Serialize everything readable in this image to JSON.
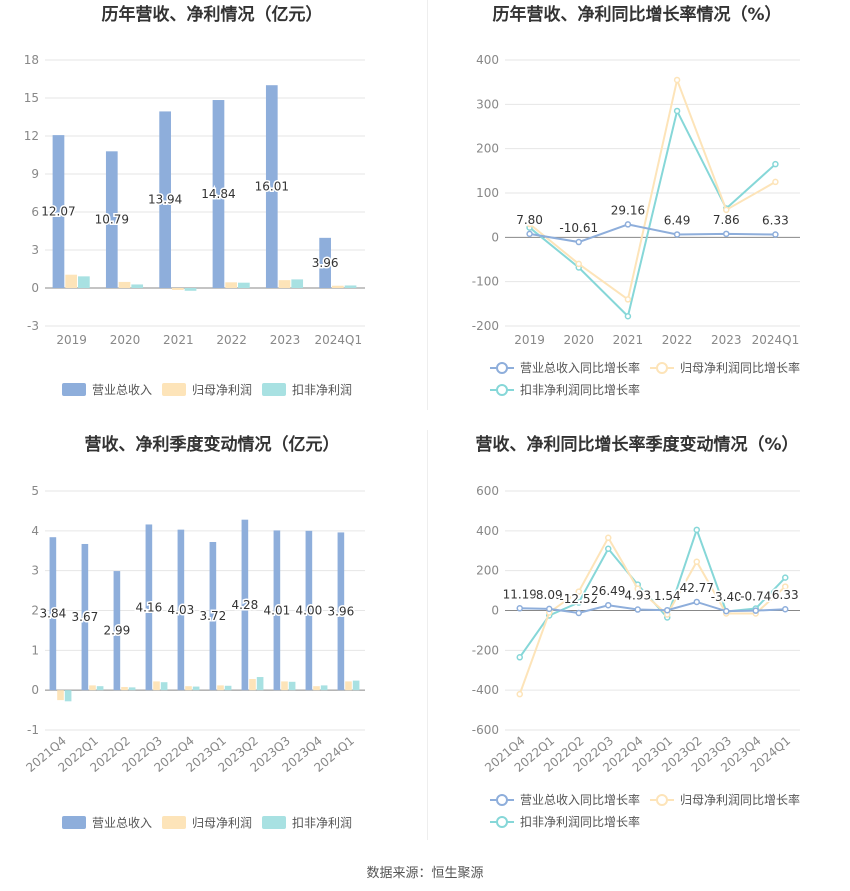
{
  "chart_data": [
    {
      "type": "bar",
      "title": "历年营收、净利情况（亿元）",
      "categories": [
        "2019",
        "2020",
        "2021",
        "2022",
        "2023",
        "2024Q1"
      ],
      "series": [
        {
          "name": "营业总收入",
          "values": [
            12.07,
            10.79,
            13.94,
            14.84,
            16.01,
            3.96
          ]
        },
        {
          "name": "归母净利润",
          "values": [
            1.05,
            0.48,
            -0.15,
            0.45,
            0.62,
            0.18
          ]
        },
        {
          "name": "扣非净利润",
          "values": [
            0.92,
            0.28,
            -0.22,
            0.42,
            0.68,
            0.2
          ]
        }
      ],
      "data_labels": [
        "12.07",
        "10.79",
        "13.94",
        "14.84",
        "16.01",
        "3.96"
      ],
      "yticks": [
        "18",
        "15",
        "12",
        "9",
        "6",
        "3",
        "0",
        "-3"
      ],
      "ylim": [
        -3,
        18
      ],
      "colors": [
        "#8eaedb",
        "#fde4b9",
        "#a8e1e2"
      ],
      "legend_position": "bottom"
    },
    {
      "type": "line",
      "title": "历年营收、净利同比增长率情况（%）",
      "categories": [
        "2019",
        "2020",
        "2021",
        "2022",
        "2023",
        "2024Q1"
      ],
      "series": [
        {
          "name": "营业总收入同比增长率",
          "values": [
            7.8,
            -10.61,
            29.16,
            6.49,
            7.86,
            6.33
          ]
        },
        {
          "name": "归母净利润同比增长率",
          "values": [
            30,
            -60,
            -140,
            355,
            62,
            125
          ]
        },
        {
          "name": "扣非净利润同比增长率",
          "values": [
            22,
            -68,
            -178,
            285,
            65,
            165
          ]
        }
      ],
      "data_labels": [
        "7.80",
        "-10.61",
        "29.16",
        "6.49",
        "7.86",
        "6.33"
      ],
      "yticks": [
        "400",
        "300",
        "200",
        "100",
        "0",
        "-100",
        "-200"
      ],
      "ylim": [
        -200,
        400
      ],
      "colors": [
        "#8eaedb",
        "#fde4b9",
        "#86d7d8"
      ],
      "legend_position": "bottom"
    },
    {
      "type": "bar",
      "title": "营收、净利季度变动情况（亿元）",
      "categories": [
        "2021Q4",
        "2022Q1",
        "2022Q2",
        "2022Q3",
        "2022Q4",
        "2023Q1",
        "2023Q2",
        "2023Q3",
        "2023Q4",
        "2024Q1"
      ],
      "series": [
        {
          "name": "营业总收入",
          "values": [
            3.84,
            3.67,
            2.99,
            4.16,
            4.03,
            3.72,
            4.28,
            4.01,
            4.0,
            3.96
          ]
        },
        {
          "name": "归母净利润",
          "values": [
            -0.25,
            0.12,
            0.08,
            0.22,
            0.1,
            0.12,
            0.28,
            0.22,
            0.1,
            0.22
          ]
        },
        {
          "name": "扣非净利润",
          "values": [
            -0.28,
            0.1,
            0.07,
            0.2,
            0.09,
            0.11,
            0.33,
            0.21,
            0.12,
            0.24
          ]
        }
      ],
      "data_labels": [
        "3.84",
        "3.67",
        "2.99",
        "4.16",
        "4.03",
        "3.72",
        "4.28",
        "4.01",
        "4.00",
        "3.96"
      ],
      "yticks": [
        "5",
        "4",
        "3",
        "2",
        "1",
        "0",
        "-1"
      ],
      "ylim": [
        -1,
        5
      ],
      "colors": [
        "#8eaedb",
        "#fde4b9",
        "#a8e1e2"
      ],
      "legend_position": "bottom"
    },
    {
      "type": "line",
      "title": "营收、净利同比增长率季度变动情况（%）",
      "categories": [
        "2021Q4",
        "2022Q1",
        "2022Q2",
        "2022Q3",
        "2022Q4",
        "2023Q1",
        "2023Q2",
        "2023Q3",
        "2023Q4",
        "2024Q1"
      ],
      "series": [
        {
          "name": "营业总收入同比增长率",
          "values": [
            11.19,
            8.09,
            -12.52,
            26.49,
            4.93,
            1.54,
            42.77,
            -3.4,
            -0.74,
            6.33
          ]
        },
        {
          "name": "归母净利润同比增长率",
          "values": [
            -420,
            -10,
            95,
            365,
            110,
            -20,
            245,
            -15,
            -15,
            120
          ]
        },
        {
          "name": "扣非净利润同比增长率",
          "values": [
            -235,
            -25,
            40,
            310,
            130,
            -35,
            405,
            -5,
            10,
            165
          ]
        }
      ],
      "data_labels": [
        "11.19",
        "8.09",
        "-12.52",
        "26.49",
        "4.93",
        "1.54",
        "42.77",
        "-3.40",
        "-0.74",
        "6.33"
      ],
      "yticks": [
        "600",
        "400",
        "200",
        "0",
        "-200",
        "-400",
        "-600"
      ],
      "ylim": [
        -600,
        600
      ],
      "colors": [
        "#8eaedb",
        "#fde4b9",
        "#86d7d8"
      ],
      "legend_position": "bottom"
    }
  ],
  "footer": {
    "source": "数据来源：恒生聚源"
  }
}
